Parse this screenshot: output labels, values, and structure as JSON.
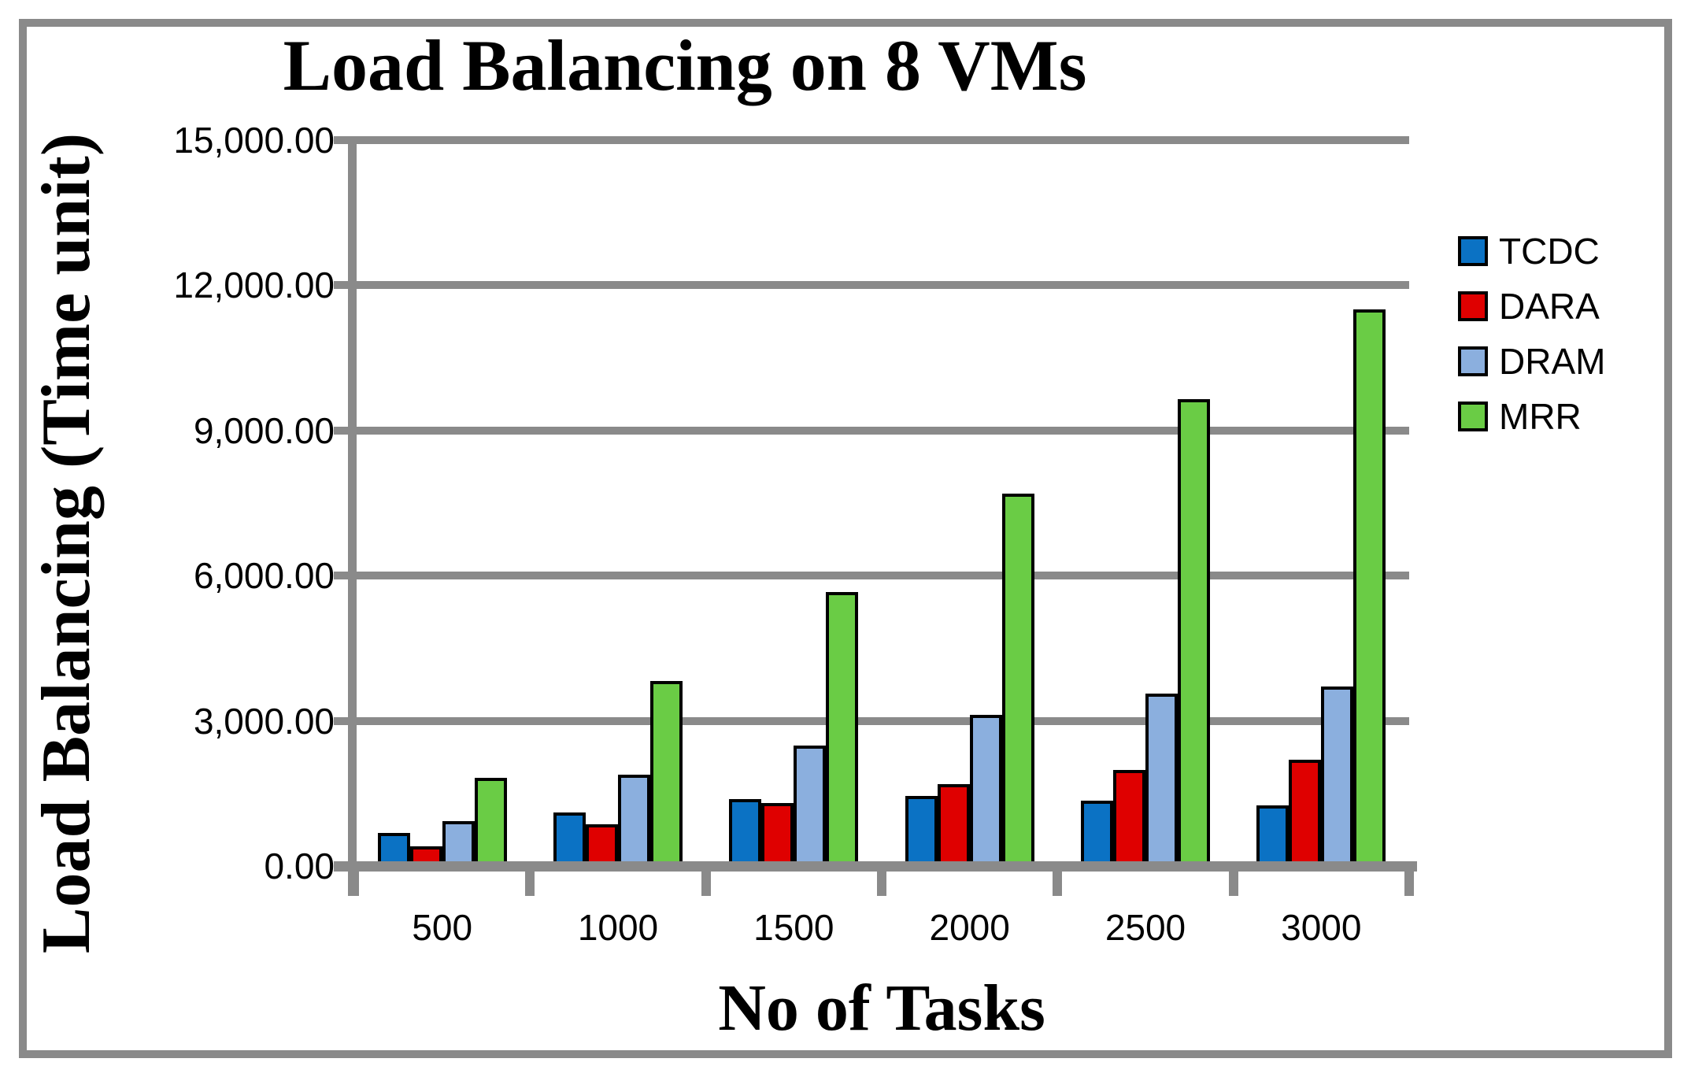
{
  "chart_data": {
    "type": "bar",
    "title": "Load Balancing on 8 VMs",
    "xlabel": "No of Tasks",
    "ylabel": "Load Balancing (Time unit)",
    "categories": [
      "500",
      "1000",
      "1500",
      "2000",
      "2500",
      "3000"
    ],
    "series": [
      {
        "name": "TCDC",
        "color": "#0B72C4",
        "values": [
          680,
          1100,
          1380,
          1440,
          1350,
          1260
        ]
      },
      {
        "name": "DARA",
        "color": "#DF0000",
        "values": [
          400,
          860,
          1300,
          1700,
          1980,
          2200
        ]
      },
      {
        "name": "DRAM",
        "color": "#8BAFDE",
        "values": [
          930,
          1890,
          2490,
          3120,
          3560,
          3710
        ]
      },
      {
        "name": "MRR",
        "color": "#6ACC45",
        "values": [
          1820,
          3830,
          5660,
          7700,
          9650,
          11500
        ]
      }
    ],
    "ylim": [
      0,
      15000
    ],
    "y_tick_step": 3000,
    "y_tick_labels": [
      "0.00",
      "3,000.00",
      "6,000.00",
      "9,000.00",
      "12,000.00",
      "15,000.00"
    ],
    "grid": true,
    "legend_position": "right",
    "axis_color": "#8a8a8a",
    "bar_border_color": "#000000"
  }
}
